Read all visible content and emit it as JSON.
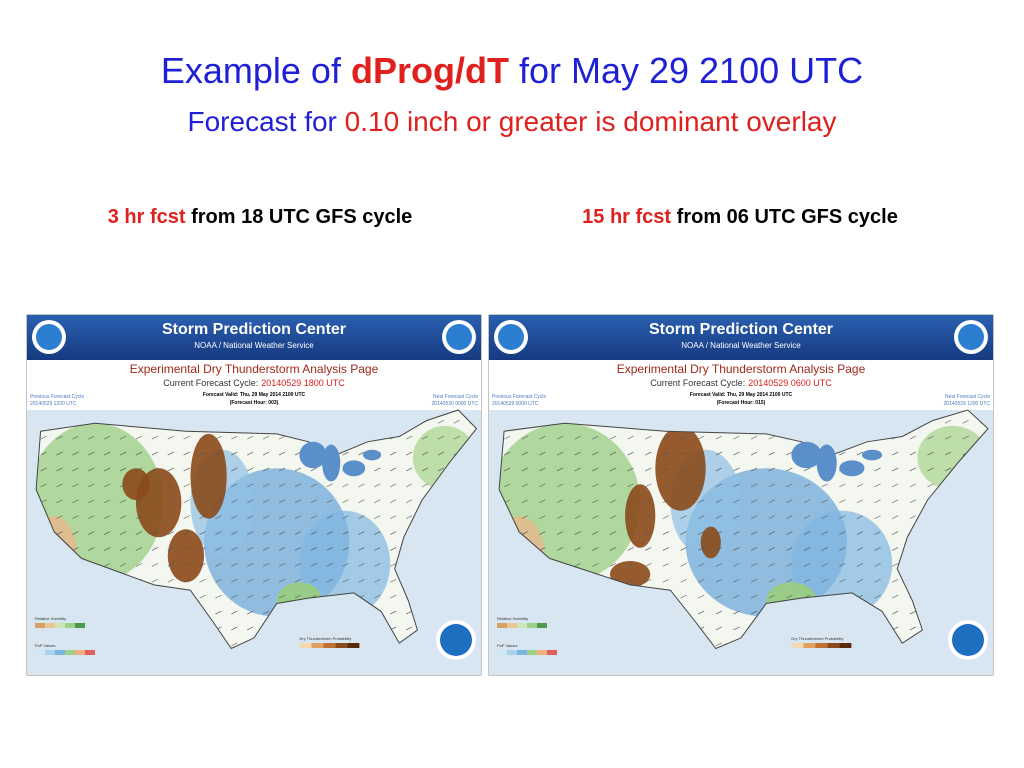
{
  "title": {
    "prefix": "Example of",
    "highlight": "dProg/dT",
    "suffix": "for May 29 2100 UTC"
  },
  "subtitle": {
    "prefix": "Forecast for",
    "highlight": "0.10 inch or greater is dominant overlay"
  },
  "panels": [
    {
      "caption": {
        "highlight": "3 hr fcst",
        "rest": "from 18 UTC GFS cycle"
      },
      "map": {
        "header": "Storm Prediction Center",
        "subheader": "NOAA / National Weather Service",
        "page_title": "Experimental Dry Thunderstorm Analysis Page",
        "cycle_label": "Current Forecast Cycle:",
        "cycle": "20140529 1800 UTC",
        "valid": "Forecast Valid: Thu, 29 May 2014 2100 UTC",
        "hour": "(Forecast Hour: 003)",
        "previous_label": "Previous Forecast Cycle",
        "previous": "20140529 1200 UTC",
        "next_label": "Next Forecast Cycle",
        "next": "20140530 0000 UTC",
        "legend_rh": "Relative Humidity",
        "legend_pop": "PoP Values",
        "legend_dry": "Dry Thunderstorm Probability"
      }
    },
    {
      "caption": {
        "highlight": "15 hr fcst",
        "rest": "from 06 UTC GFS cycle"
      },
      "map": {
        "header": "Storm Prediction Center",
        "subheader": "NOAA / National Weather Service",
        "page_title": "Experimental Dry Thunderstorm Analysis Page",
        "cycle_label": "Current Forecast Cycle:",
        "cycle": "20140529 0600 UTC",
        "valid": "Forecast Valid: Thu, 29 May 2014 2100 UTC",
        "hour": "(Forecast Hour: 015)",
        "previous_label": "Previous Forecast Cycle",
        "previous": "20140529 0000 UTC",
        "next_label": "Next Forecast Cycle",
        "next": "20140529 1200 UTC",
        "legend_rh": "Relative Humidity",
        "legend_pop": "PoP Values",
        "legend_dry": "Dry Thunderstorm Probability"
      }
    }
  ]
}
